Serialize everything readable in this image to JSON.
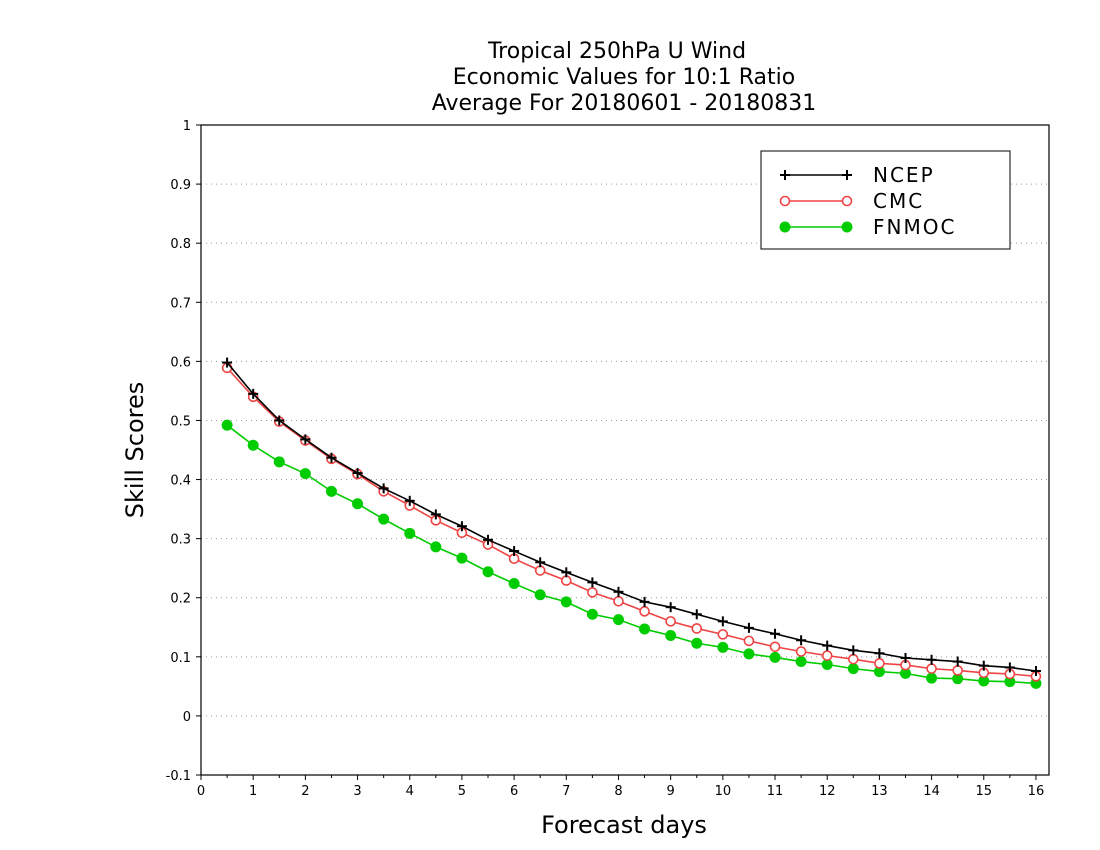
{
  "chart_data": {
    "type": "line",
    "title_lines": [
      "Tropical 250hPa U Wind",
      "Economic Values for 10:1 Ratio",
      "Average For 20180601 - 20180831"
    ],
    "xlabel": "Forecast days",
    "ylabel": "Skill Scores",
    "xlim": [
      0,
      16.25
    ],
    "ylim": [
      -0.1,
      1
    ],
    "x_ticks": [
      0,
      1,
      2,
      3,
      4,
      5,
      6,
      7,
      8,
      9,
      10,
      11,
      12,
      13,
      14,
      15,
      16
    ],
    "x_tick_labels": [
      "0",
      "1",
      "2",
      "3",
      "4",
      "5",
      "6",
      "7",
      "8",
      "9",
      "10",
      "11",
      "12",
      "13",
      "14",
      "15",
      "16"
    ],
    "y_ticks": [
      -0.1,
      0,
      0.1,
      0.2,
      0.3,
      0.4,
      0.5,
      0.6,
      0.7,
      0.8,
      0.9,
      1
    ],
    "y_tick_labels": [
      "-0.1",
      "0",
      "0.1",
      "0.2",
      "0.3",
      "0.4",
      "0.5",
      "0.6",
      "0.7",
      "0.8",
      "0.9",
      "1"
    ],
    "grid": "horizontal-dotted",
    "legend_position": "top-right",
    "x": [
      0.5,
      1,
      1.5,
      2,
      2.5,
      3,
      3.5,
      4,
      4.5,
      5,
      5.5,
      6,
      6.5,
      7,
      7.5,
      8,
      8.5,
      9,
      9.5,
      10,
      10.5,
      11,
      11.5,
      12,
      12.5,
      13,
      13.5,
      14,
      14.5,
      15,
      15.5,
      16
    ],
    "series": [
      {
        "name": "NCEP",
        "color": "#000000",
        "marker": "plus",
        "values": [
          0.598,
          0.545,
          0.5,
          0.468,
          0.437,
          0.411,
          0.385,
          0.364,
          0.341,
          0.321,
          0.298,
          0.279,
          0.26,
          0.243,
          0.226,
          0.21,
          0.193,
          0.184,
          0.172,
          0.16,
          0.149,
          0.139,
          0.128,
          0.119,
          0.111,
          0.106,
          0.098,
          0.095,
          0.092,
          0.085,
          0.082,
          0.076
        ]
      },
      {
        "name": "CMC",
        "color": "#ee4444",
        "marker": "open-circle",
        "values": [
          0.589,
          0.54,
          0.498,
          0.466,
          0.435,
          0.409,
          0.38,
          0.356,
          0.331,
          0.31,
          0.29,
          0.266,
          0.246,
          0.229,
          0.209,
          0.194,
          0.177,
          0.16,
          0.148,
          0.138,
          0.127,
          0.117,
          0.109,
          0.102,
          0.096,
          0.089,
          0.086,
          0.08,
          0.077,
          0.073,
          0.071,
          0.067
        ]
      },
      {
        "name": "FNMOC",
        "color": "#00cc00",
        "marker": "filled-circle",
        "values": [
          0.492,
          0.458,
          0.43,
          0.41,
          0.38,
          0.359,
          0.333,
          0.309,
          0.286,
          0.267,
          0.244,
          0.224,
          0.205,
          0.193,
          0.172,
          0.163,
          0.147,
          0.136,
          0.123,
          0.116,
          0.105,
          0.099,
          0.092,
          0.087,
          0.08,
          0.075,
          0.072,
          0.064,
          0.063,
          0.059,
          0.058,
          0.055
        ]
      }
    ]
  }
}
